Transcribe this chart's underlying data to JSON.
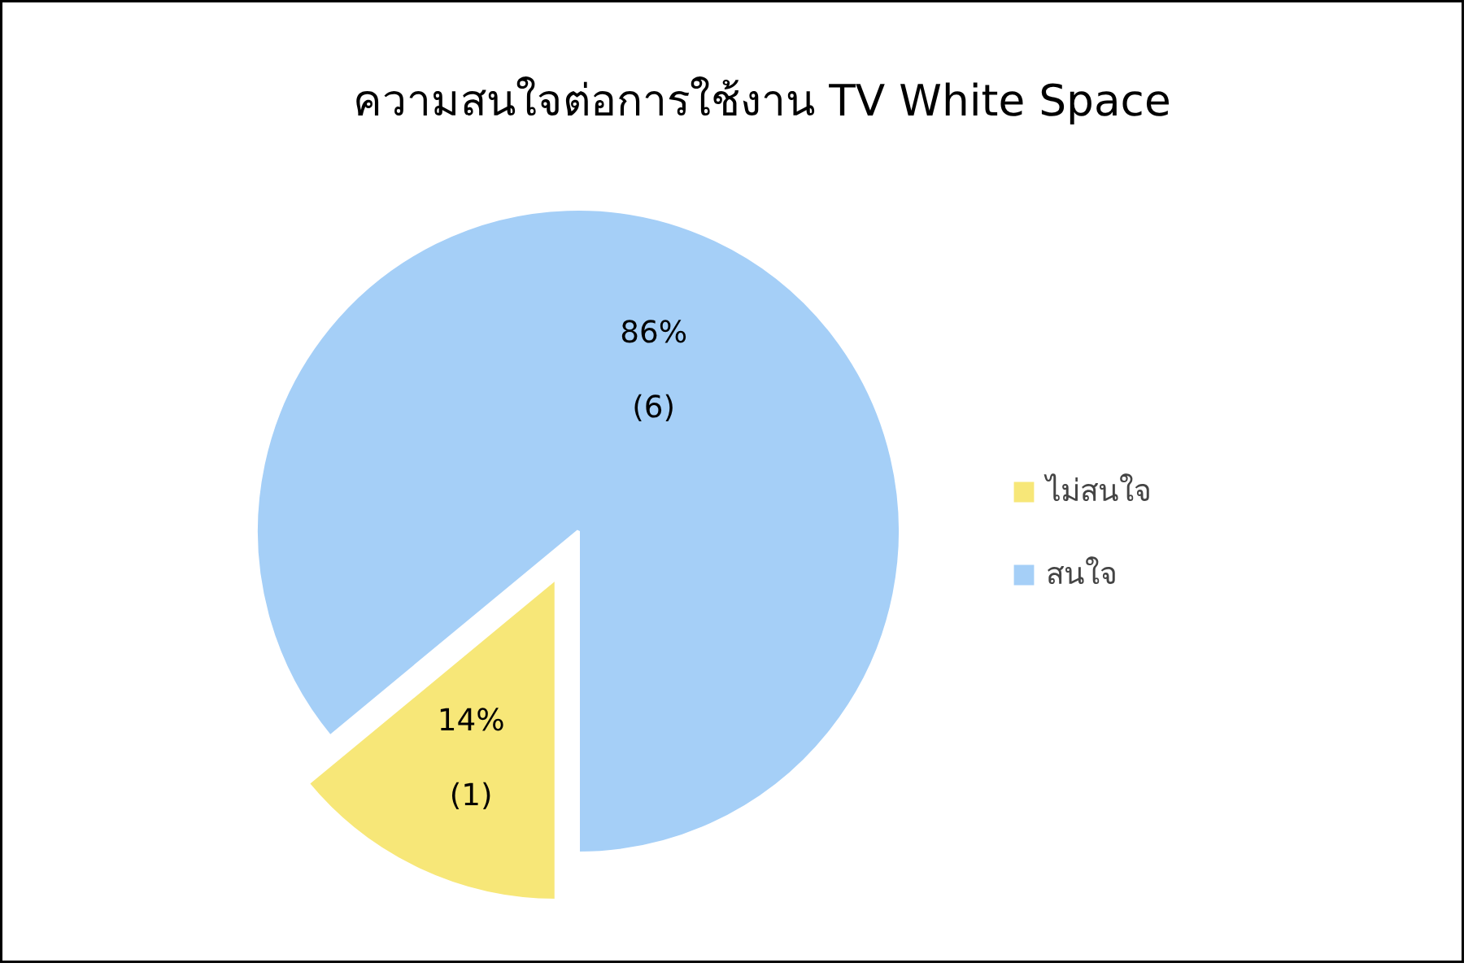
{
  "chart_data": {
    "type": "pie",
    "title": "ความสนใจต่อการใช้งาน TV White Space",
    "categories": [
      "ไม่สนใจ",
      "สนใจ"
    ],
    "values": [
      14,
      86
    ],
    "colors": [
      "#f7e778",
      "#a5cff7"
    ],
    "value_labels": [
      "14%\n(1)",
      "86%\n(6)"
    ],
    "legend": "right"
  }
}
